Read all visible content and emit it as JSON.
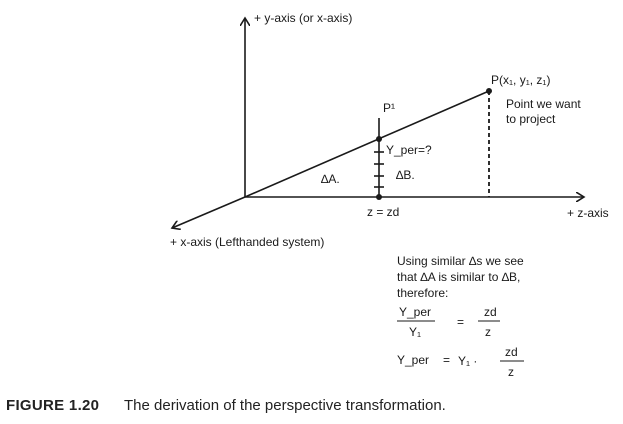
{
  "diagram": {
    "y_axis_label": "+ y-axis (or x-axis)",
    "z_axis_label": "+ z-axis",
    "x_axis_label": "+ x-axis (Lefthanded system)",
    "point_label": "P(x₁, y₁, z₁)",
    "point_note_line1": "Point we want",
    "point_note_line2": "to project",
    "projected_point_label": "P¹",
    "y_per_label": "Y_per=?",
    "delta_a_label": "∆A.",
    "delta_b_label": "∆B.",
    "z_plane_label": "z = zd",
    "explanation_line1": "Using similar ∆s we see",
    "explanation_line2": "that ∆A is similar to ∆B,",
    "explanation_line3": "therefore:",
    "eq1_num_left": "Y_per",
    "eq1_den_left": "Y₁",
    "eq1_equals": "=",
    "eq1_num_right": "zd",
    "eq1_den_right": "z",
    "eq2_left": "Y_per",
    "eq2_equals": "=",
    "eq2_mid": "Y₁ ·",
    "eq2_num": "zd",
    "eq2_den": "z"
  },
  "caption": {
    "label": "FIGURE 1.20",
    "text": "The derivation of the perspective transformation."
  }
}
